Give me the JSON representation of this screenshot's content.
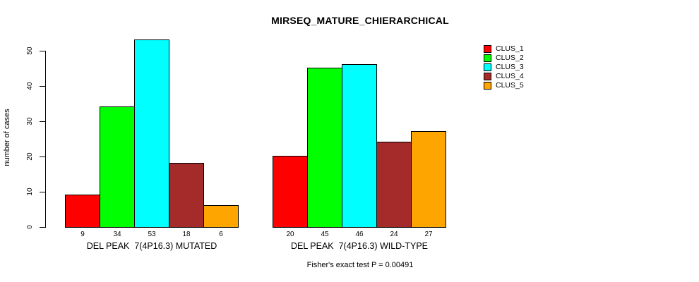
{
  "chart_data": {
    "type": "bar",
    "title": "MIRSEQ_MATURE_CHIERARCHICAL",
    "ylabel": "number of cases",
    "yticks": [
      0,
      10,
      20,
      30,
      40,
      50
    ],
    "ylim": [
      0,
      55
    ],
    "grid": false,
    "legend_position": "right",
    "bar_value_labels_shown": true,
    "categories": [
      "DEL PEAK  7(4P16.3) MUTATED",
      "DEL PEAK  7(4P16.3) WILD-TYPE"
    ],
    "series": [
      {
        "name": "CLUS_1",
        "color": "#FF0000",
        "values": [
          9,
          20
        ]
      },
      {
        "name": "CLUS_2",
        "color": "#00FF00",
        "values": [
          34,
          45
        ]
      },
      {
        "name": "CLUS_3",
        "color": "#00FFFF",
        "values": [
          53,
          46
        ]
      },
      {
        "name": "CLUS_4",
        "color": "#A52A2A",
        "values": [
          18,
          24
        ]
      },
      {
        "name": "CLUS_5",
        "color": "#FFA500",
        "values": [
          6,
          27
        ]
      }
    ],
    "caption": "Fisher's exact test P = 0.00491"
  }
}
